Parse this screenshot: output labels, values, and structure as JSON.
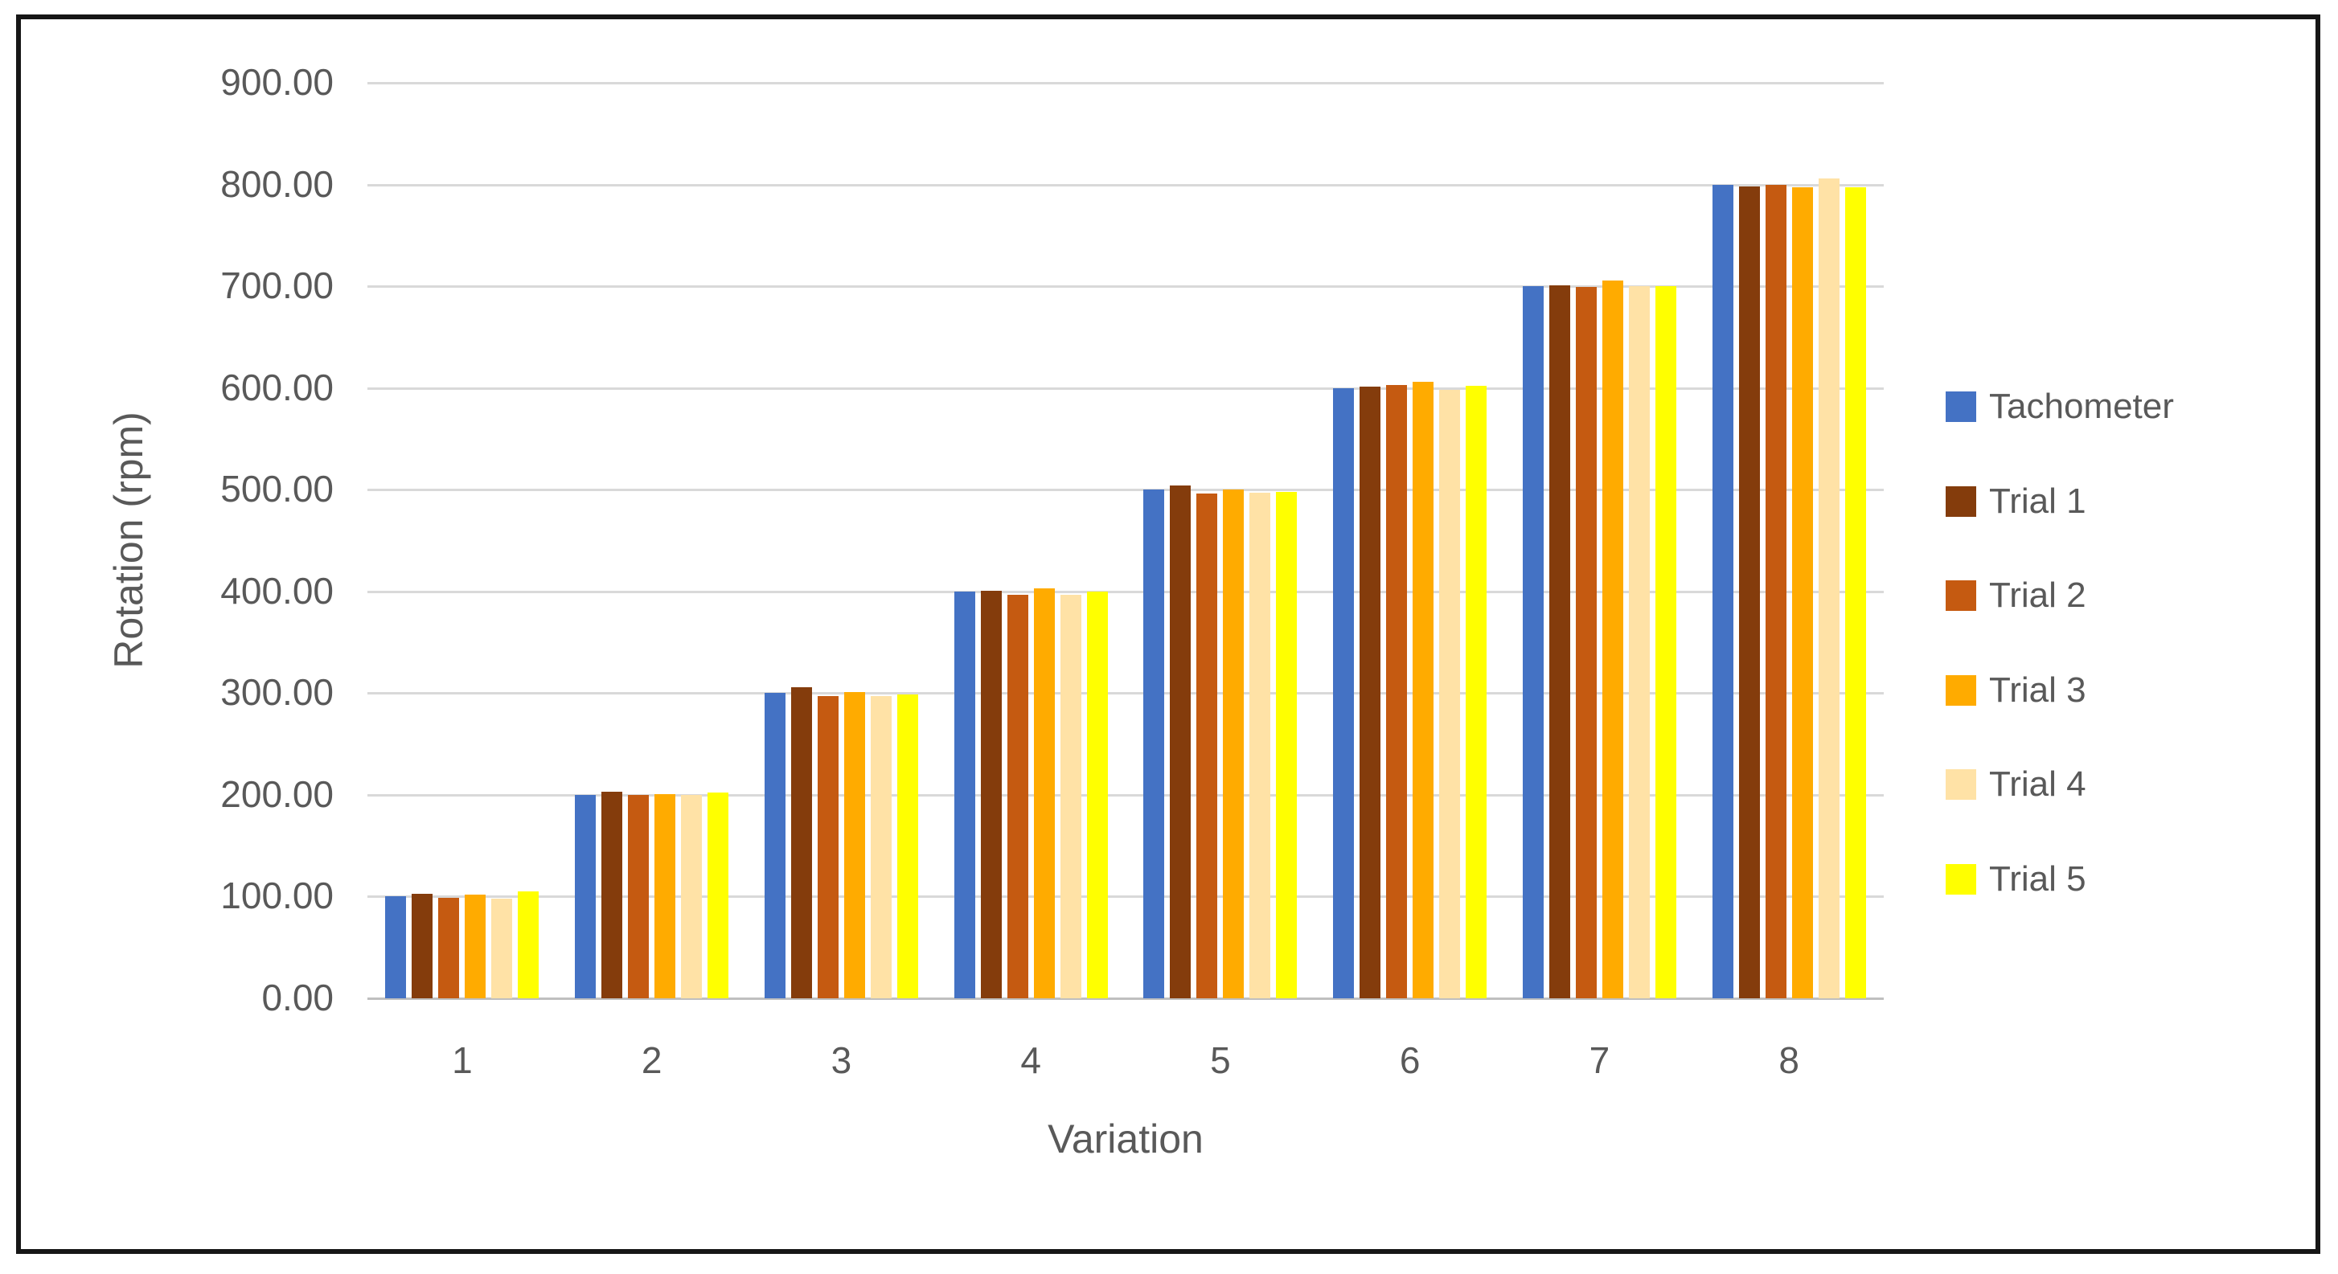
{
  "chart_data": {
    "type": "bar",
    "title": "",
    "xlabel": "Variation",
    "ylabel": "Rotation (rpm)",
    "categories": [
      "1",
      "2",
      "3",
      "4",
      "5",
      "6",
      "7",
      "8"
    ],
    "series": [
      {
        "name": "Tachometer",
        "color": "#4472C4",
        "values": [
          100,
          200,
          300,
          400,
          500,
          600,
          700,
          800
        ]
      },
      {
        "name": "Trial 1",
        "color": "#843C0C",
        "values": [
          103,
          203,
          306,
          401,
          504,
          601,
          701,
          798
        ]
      },
      {
        "name": "Trial 2",
        "color": "#C55A11",
        "values": [
          99,
          200,
          297,
          397,
          496,
          603,
          699,
          800
        ]
      },
      {
        "name": "Trial 3",
        "color": "#FFAB00",
        "values": [
          102,
          201,
          301,
          403,
          500,
          606,
          706,
          797
        ]
      },
      {
        "name": "Trial 4",
        "color": "#FFE2A6",
        "values": [
          98,
          200,
          297,
          397,
          497,
          598,
          700,
          806
        ]
      },
      {
        "name": "Trial 5",
        "color": "#FFFF00",
        "values": [
          105,
          202,
          299,
          400,
          498,
          602,
          700,
          797
        ]
      }
    ],
    "ylim": [
      0,
      900
    ],
    "y_tick_step": 100,
    "y_tick_labels": [
      "0.00",
      "100.00",
      "200.00",
      "300.00",
      "400.00",
      "500.00",
      "600.00",
      "700.00",
      "800.00",
      "900.00"
    ],
    "grid": true,
    "legend_position": "right",
    "style": {
      "text_color": "#595959",
      "grid_color": "#D9D9D9",
      "axis_line_color": "#BFBFBF",
      "frame_color": "#161616",
      "background": "#FFFFFF"
    }
  }
}
